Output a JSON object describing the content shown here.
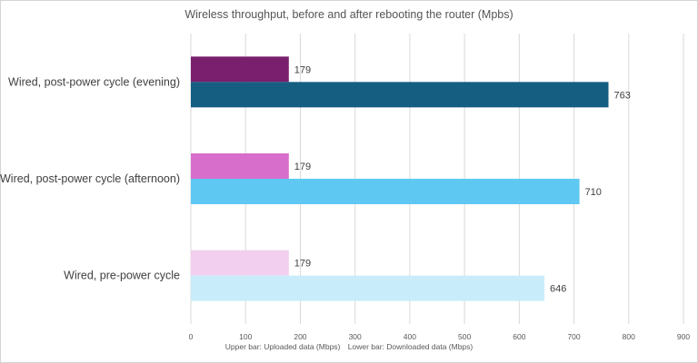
{
  "chart_data": {
    "type": "bar",
    "orientation": "horizontal",
    "title": "Wireless throughput, before and after rebooting the router (Mpbs)",
    "categories": [
      "Wired, post-power cycle (evening)",
      "Wired, post-power cycle (afternoon)",
      "Wired, pre-power cycle"
    ],
    "series": [
      {
        "role": "upper",
        "values": [
          179,
          179,
          179
        ],
        "colors": [
          "#7a1f6e",
          "#d86ecc",
          "#f2cfee"
        ]
      },
      {
        "role": "lower",
        "values": [
          763,
          710,
          646
        ],
        "colors": [
          "#155e82",
          "#5ec8f2",
          "#c9ecfa"
        ]
      }
    ],
    "xlim": [
      0,
      900
    ],
    "xticks": [
      0,
      100,
      200,
      300,
      400,
      500,
      600,
      700,
      800,
      900
    ],
    "grid": "vertical",
    "data_labels": true,
    "notes": [
      "Upper bar: Uploaded data (Mbps)",
      "Lower bar: Downloaded data (Mbps)"
    ]
  }
}
